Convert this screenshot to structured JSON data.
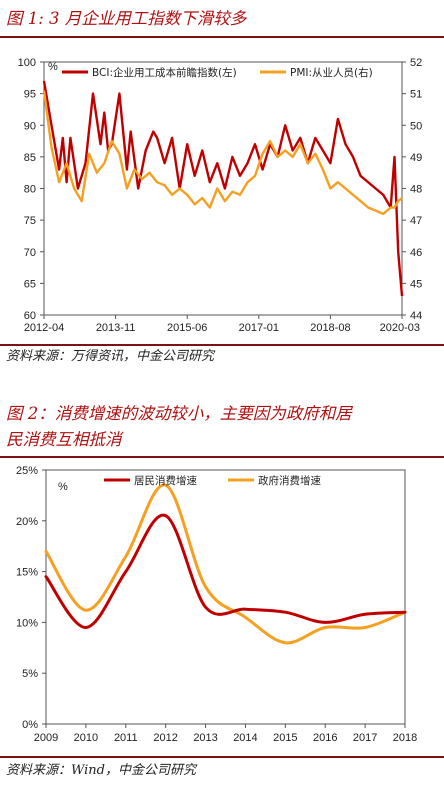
{
  "figure1": {
    "title": "图 1: 3 月企业用工指数下滑较多",
    "source": "资料来源：万得资讯，中金公司研究",
    "chart_data": {
      "type": "line",
      "left_unit": "%",
      "x_ticks": [
        "2012-04",
        "2013-11",
        "2015-06",
        "2017-01",
        "2018-08",
        "2020-03"
      ],
      "y_left": {
        "min": 60,
        "max": 100,
        "ticks": [
          60,
          65,
          70,
          75,
          80,
          85,
          90,
          95,
          100
        ]
      },
      "y_right": {
        "min": 44,
        "max": 52,
        "ticks": [
          44,
          45,
          46,
          47,
          48,
          49,
          50,
          51,
          52
        ]
      },
      "legend_position": "top",
      "series": [
        {
          "name": "BCI:企业用工成本前瞻指数(左)",
          "axis": "left",
          "color": "#c00000",
          "x": [
            "2012-04",
            "2012-06",
            "2012-08",
            "2012-09",
            "2012-10",
            "2012-11",
            "2013-01",
            "2013-03",
            "2013-05",
            "2013-07",
            "2013-08",
            "2013-09",
            "2013-10",
            "2013-12",
            "2014-02",
            "2014-03",
            "2014-05",
            "2014-07",
            "2014-09",
            "2014-10",
            "2014-12",
            "2015-02",
            "2015-04",
            "2015-06",
            "2015-08",
            "2015-10",
            "2015-12",
            "2016-02",
            "2016-04",
            "2016-06",
            "2016-08",
            "2016-10",
            "2016-12",
            "2017-02",
            "2017-04",
            "2017-06",
            "2017-08",
            "2017-10",
            "2017-12",
            "2018-02",
            "2018-04",
            "2018-06",
            "2018-08",
            "2018-10",
            "2018-12",
            "2019-02",
            "2019-04",
            "2019-06",
            "2019-08",
            "2019-10",
            "2019-12",
            "2020-01",
            "2020-02",
            "2020-03"
          ],
          "values": [
            97,
            90,
            83,
            88,
            81,
            88,
            80,
            84,
            95,
            87,
            92,
            86,
            87,
            95,
            83,
            89,
            80,
            86,
            89,
            88,
            84,
            88,
            80,
            87,
            82,
            86,
            81,
            84,
            80,
            85,
            82,
            84,
            87,
            83,
            87,
            85,
            90,
            86,
            88,
            84,
            88,
            86,
            84,
            91,
            87,
            85,
            82,
            81,
            80,
            79,
            77,
            85,
            70,
            63
          ]
        },
        {
          "name": "PMI:从业人员(右)",
          "axis": "right",
          "color": "#f5a020",
          "x": [
            "2012-04",
            "2012-06",
            "2012-08",
            "2012-10",
            "2012-12",
            "2013-02",
            "2013-04",
            "2013-06",
            "2013-08",
            "2013-10",
            "2013-12",
            "2014-02",
            "2014-04",
            "2014-06",
            "2014-08",
            "2014-10",
            "2014-12",
            "2015-02",
            "2015-04",
            "2015-06",
            "2015-08",
            "2015-10",
            "2015-12",
            "2016-02",
            "2016-04",
            "2016-06",
            "2016-08",
            "2016-10",
            "2016-12",
            "2017-02",
            "2017-04",
            "2017-06",
            "2017-08",
            "2017-10",
            "2017-12",
            "2018-02",
            "2018-04",
            "2018-06",
            "2018-08",
            "2018-10",
            "2018-12",
            "2019-02",
            "2019-04",
            "2019-06",
            "2019-08",
            "2019-10",
            "2019-12",
            "2020-01",
            "2020-02",
            "2020-03"
          ],
          "values": [
            51.1,
            49.3,
            48.2,
            48.8,
            48.0,
            47.6,
            49.1,
            48.5,
            48.8,
            49.5,
            49.1,
            48.0,
            48.6,
            48.3,
            48.5,
            48.2,
            48.1,
            47.8,
            48.0,
            47.8,
            47.5,
            47.7,
            47.4,
            48.0,
            47.6,
            47.9,
            47.8,
            48.2,
            48.4,
            49.1,
            49.5,
            49.0,
            49.2,
            49.0,
            49.4,
            48.8,
            49.1,
            48.6,
            48.0,
            48.2,
            48.0,
            47.8,
            47.6,
            47.4,
            47.3,
            47.2,
            47.4,
            47.4,
            47.6,
            47.7
          ]
        }
      ]
    }
  },
  "figure2": {
    "title_line1": "图 2：消费增速的波动较小，主要因为政府和居",
    "title_line2": "民消费互相抵消",
    "source": "资料来源：Wind，中金公司研究",
    "chart_data": {
      "type": "line",
      "unit": "%",
      "categories": [
        "2009",
        "2010",
        "2011",
        "2012",
        "2013",
        "2014",
        "2015",
        "2016",
        "2017",
        "2018"
      ],
      "y": {
        "min": 0,
        "max": 25,
        "ticks": [
          "0%",
          "5%",
          "10%",
          "15%",
          "20%",
          "25%"
        ]
      },
      "legend_position": "top",
      "series": [
        {
          "name": "居民消费增速",
          "color": "#c00000",
          "values": [
            14.5,
            9.5,
            15.0,
            20.5,
            11.5,
            11.3,
            11.0,
            10.0,
            10.8,
            11.0
          ]
        },
        {
          "name": "政府消费增速",
          "color": "#f5a020",
          "values": [
            17.0,
            11.2,
            16.5,
            23.5,
            13.5,
            10.5,
            8.0,
            9.5,
            9.5,
            11.0
          ]
        }
      ]
    }
  }
}
